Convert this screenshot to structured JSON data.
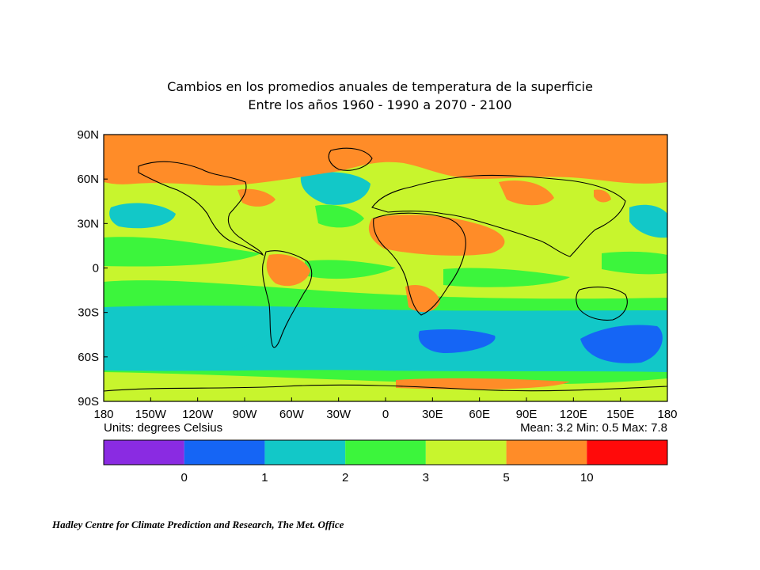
{
  "title": {
    "line1": "Cambios en los promedios anuales de temperatura de la superficie",
    "line2": "Entre los años 1960 - 1990 a 2070 - 2100"
  },
  "map": {
    "lat_labels": [
      "90N",
      "60N",
      "30N",
      "0",
      "30S",
      "60S",
      "90S"
    ],
    "lon_labels": [
      "180",
      "150W",
      "120W",
      "90W",
      "60W",
      "30W",
      "0",
      "30E",
      "60E",
      "90E",
      "120E",
      "150E",
      "180"
    ],
    "units_text": "Units: degrees Celsius",
    "stats_text": "Mean:  3.2 Min:  0.5 Max:  7.8",
    "colors": {
      "purple": "#8A2BE2",
      "blue": "#1565F5",
      "cyan": "#12C8C8",
      "green": "#3CF53C",
      "yellowgreen": "#C8F52D",
      "orange": "#FF8C28",
      "red": "#FF0A0A"
    }
  },
  "legend": {
    "colors": [
      "#8A2BE2",
      "#1565F5",
      "#12C8C8",
      "#3CF53C",
      "#C8F52D",
      "#FF8C28",
      "#FF0A0A"
    ],
    "labels": [
      "0",
      "1",
      "2",
      "3",
      "5",
      "10"
    ]
  },
  "footer": {
    "credit": "Hadley Centre for Climate Prediction and Research, The Met. Office"
  }
}
